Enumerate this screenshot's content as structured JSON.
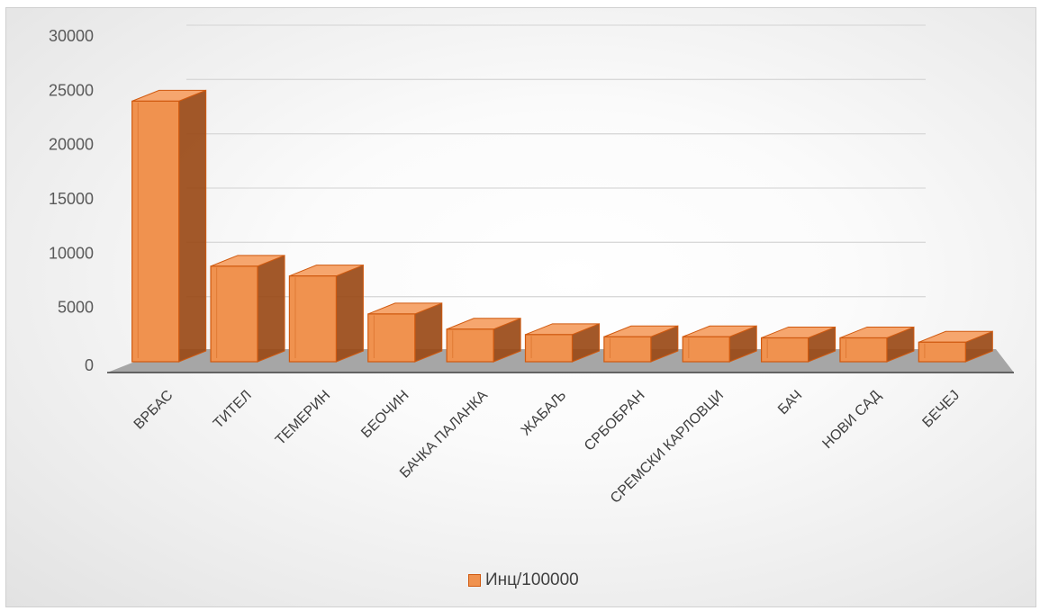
{
  "chart_data": {
    "type": "bar",
    "categories": [
      "ВРБАС",
      "ТИТЕЛ",
      "ТЕМЕРИН",
      "БЕОЧИН",
      "БАЧКА ПАЛАНКА",
      "ЖАБАЉ",
      "СРБОБРАН",
      "СРЕМСКИ КАРЛОВЦИ",
      "БАЧ",
      "НОВИ САД",
      "БЕЧЕЈ"
    ],
    "series": [
      {
        "name": "Инц/100000",
        "values": [
          24000,
          8800,
          7900,
          4400,
          3000,
          2500,
          2300,
          2300,
          2200,
          2200,
          1800
        ]
      }
    ],
    "ylim": [
      0,
      30000
    ],
    "yticks": [
      0,
      5000,
      10000,
      15000,
      20000,
      25000,
      30000
    ],
    "grid": true,
    "legend": "bottom",
    "colors": {
      "bar_front": "#f0924f",
      "bar_side": "#9a4a17",
      "bar_top": "#f6a66e",
      "bar_edge": "#d05a10",
      "floor": "#a6a6a6"
    }
  }
}
